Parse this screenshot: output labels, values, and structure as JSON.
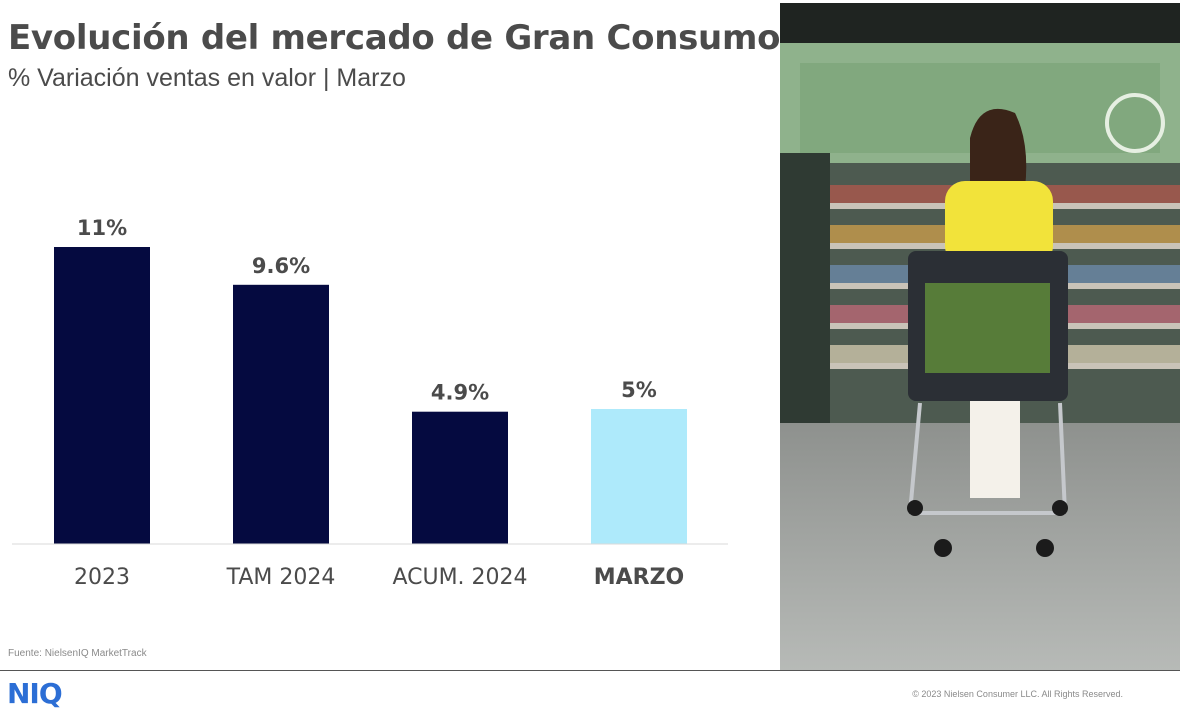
{
  "header": {
    "title": "Evolución del mercado de Gran Consumo",
    "subtitle": "% Variación ventas en valor | Marzo"
  },
  "chart_data": {
    "type": "bar",
    "categories": [
      "2023",
      "TAM 2024",
      "ACUM. 2024",
      "MARZO"
    ],
    "values": [
      11,
      9.6,
      4.9,
      5
    ],
    "labels": [
      "11%",
      "9.6%",
      "4.9%",
      "5%"
    ],
    "colors": [
      "#050a40",
      "#050a40",
      "#050a40",
      "#aeeafb"
    ],
    "highlight_category": "MARZO",
    "ylim": [
      0,
      12
    ],
    "grid": false,
    "legend": "none"
  },
  "footer": {
    "source": "Fuente: NielsenIQ MarketTrack",
    "logo": "NIQ",
    "copyright": "© 2023 Nielsen Consumer LLC. All Rights Reserved."
  },
  "photo": {
    "icon": "supermarket-shopper-photo",
    "colors": {
      "shelves": "#5b6f5f",
      "shirt": "#f2e33a",
      "cart": "#2b2f35",
      "floor": "#a9aca8"
    }
  }
}
